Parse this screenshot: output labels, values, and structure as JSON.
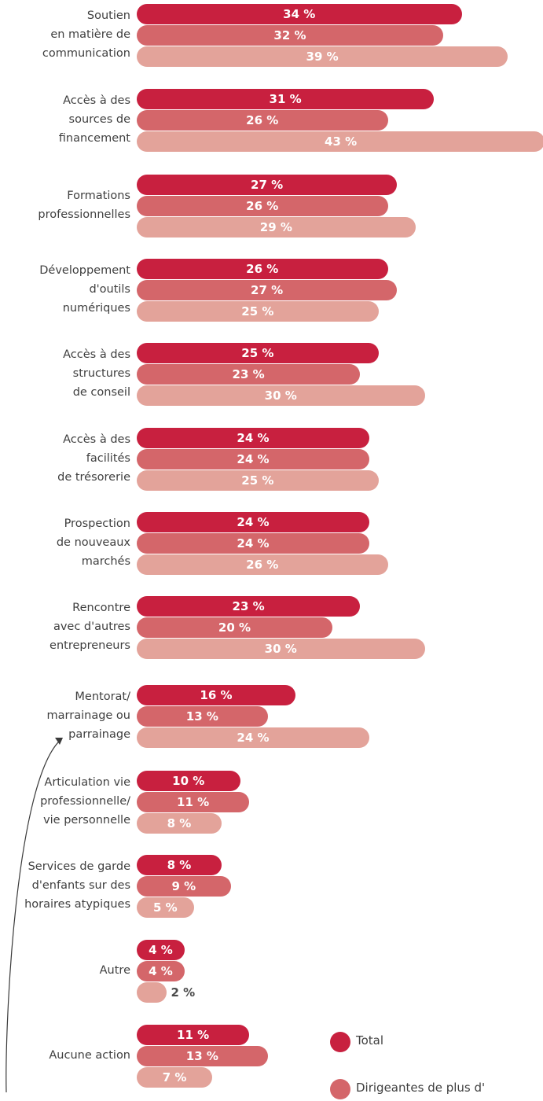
{
  "chart_data": {
    "type": "bar",
    "orientation": "horizontal",
    "value_suffix": " %",
    "categories": [
      "Soutien\nen matière de\ncommunication",
      "Accès à des\nsources de\nfinancement",
      "Formations\nprofessionnelles",
      "Développement\nd'outils\nnumériques",
      "Accès à des\nstructures\nde conseil",
      "Accès à des\nfacilités\nde trésorerie",
      "Prospection\nde nouveaux\nmarchés",
      "Rencontre\navec d'autres\nentrepreneurs",
      "Mentorat/\nmarrainage ou\nparrainage",
      "Articulation vie\nprofessionnelle/\nvie personnelle",
      "Services de garde\nd'enfants sur des\nhoraires atypiques",
      "Autre",
      "Aucune action"
    ],
    "series": [
      {
        "name": "Total",
        "color": "#c8203f",
        "values": [
          34,
          31,
          27,
          26,
          25,
          24,
          24,
          23,
          16,
          10,
          8,
          4,
          11
        ]
      },
      {
        "name": "Dirigeantes de plus d'",
        "color": "#d4666a",
        "values": [
          32,
          26,
          26,
          27,
          23,
          24,
          24,
          20,
          13,
          11,
          9,
          4,
          13
        ]
      },
      {
        "name": "",
        "color": "#e3a39a",
        "values": [
          39,
          43,
          29,
          25,
          30,
          25,
          26,
          30,
          24,
          8,
          5,
          2,
          7
        ]
      }
    ],
    "xlim": [
      0,
      43
    ],
    "grid": false,
    "legend_position": "bottom-right"
  },
  "legend": [
    {
      "label": "Total",
      "color": "#c8203f"
    },
    {
      "label": "Dirigeantes de plus d'",
      "color": "#d4666a"
    }
  ]
}
